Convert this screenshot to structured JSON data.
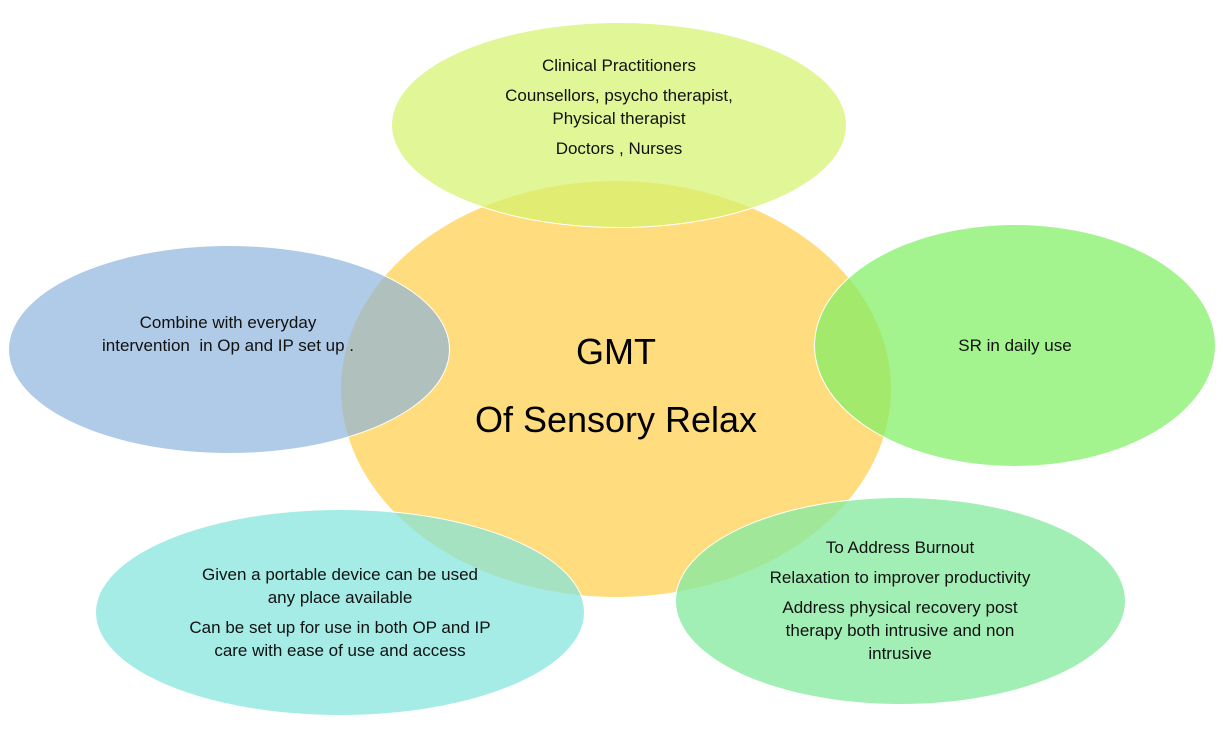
{
  "center": {
    "line1": "GMT",
    "line2": "Of Sensory Relax"
  },
  "top": {
    "line1": "Clinical Practitioners",
    "line2": "Counsellors, psycho therapist,",
    "line3": "Physical therapist",
    "line4": "Doctors , Nurses"
  },
  "left": {
    "line1": "Combine with everyday",
    "line2": "intervention  in Op and IP set up ."
  },
  "right": {
    "line1": "SR in daily use"
  },
  "bottom_left": {
    "line1": "Given a portable device can be used",
    "line2": "any place available",
    "line3": "Can be set up for use in both OP and IP",
    "line4": "care with ease of use and access"
  },
  "bottom_right": {
    "line1": "To Address Burnout",
    "line2": "Relaxation to improver productivity",
    "line3": "Address physical recovery post",
    "line4": "therapy both intrusive and non",
    "line5": "intrusive"
  },
  "colors": {
    "center": "#FFD564",
    "top": "#D6F26E",
    "left": "#8BB2DC",
    "right": "#80EE64",
    "bottom_left": "#82E4DC",
    "bottom_right": "#86EAA0"
  }
}
